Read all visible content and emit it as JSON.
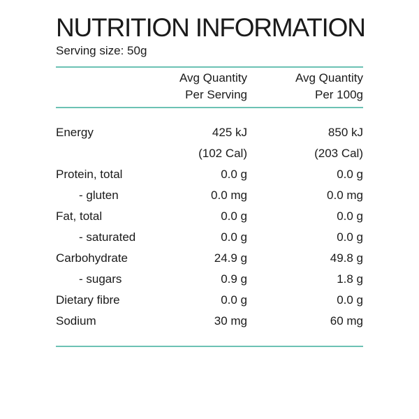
{
  "title": "NUTRITION INFORMATION",
  "serving_size": "Serving size: 50g",
  "colors": {
    "rule": "#6cc2b4",
    "text": "#1a1a1a"
  },
  "header": {
    "per_serving": [
      "Avg Quantity",
      "Per Serving"
    ],
    "per_100g": [
      "Avg Quantity",
      "Per 100g"
    ]
  },
  "rows": [
    {
      "label": "Energy",
      "per_serving": "425 kJ",
      "per_100g": "850 kJ",
      "indent": false
    },
    {
      "label": "",
      "per_serving": "(102 Cal)",
      "per_100g": "(203 Cal)",
      "indent": false
    },
    {
      "label": "Protein, total",
      "per_serving": "0.0 g",
      "per_100g": "0.0 g",
      "indent": false
    },
    {
      "label": "- gluten",
      "per_serving": "0.0 mg",
      "per_100g": "0.0 mg",
      "indent": true
    },
    {
      "label": "Fat, total",
      "per_serving": "0.0 g",
      "per_100g": "0.0 g",
      "indent": false
    },
    {
      "label": "- saturated",
      "per_serving": "0.0 g",
      "per_100g": "0.0 g",
      "indent": true
    },
    {
      "label": "Carbohydrate",
      "per_serving": "24.9 g",
      "per_100g": "49.8 g",
      "indent": false
    },
    {
      "label": "- sugars",
      "per_serving": "0.9 g",
      "per_100g": "1.8 g",
      "indent": true
    },
    {
      "label": "Dietary fibre",
      "per_serving": "0.0 g",
      "per_100g": "0.0 g",
      "indent": false
    },
    {
      "label": "Sodium",
      "per_serving": "30 mg",
      "per_100g": "60 mg",
      "indent": false
    }
  ]
}
